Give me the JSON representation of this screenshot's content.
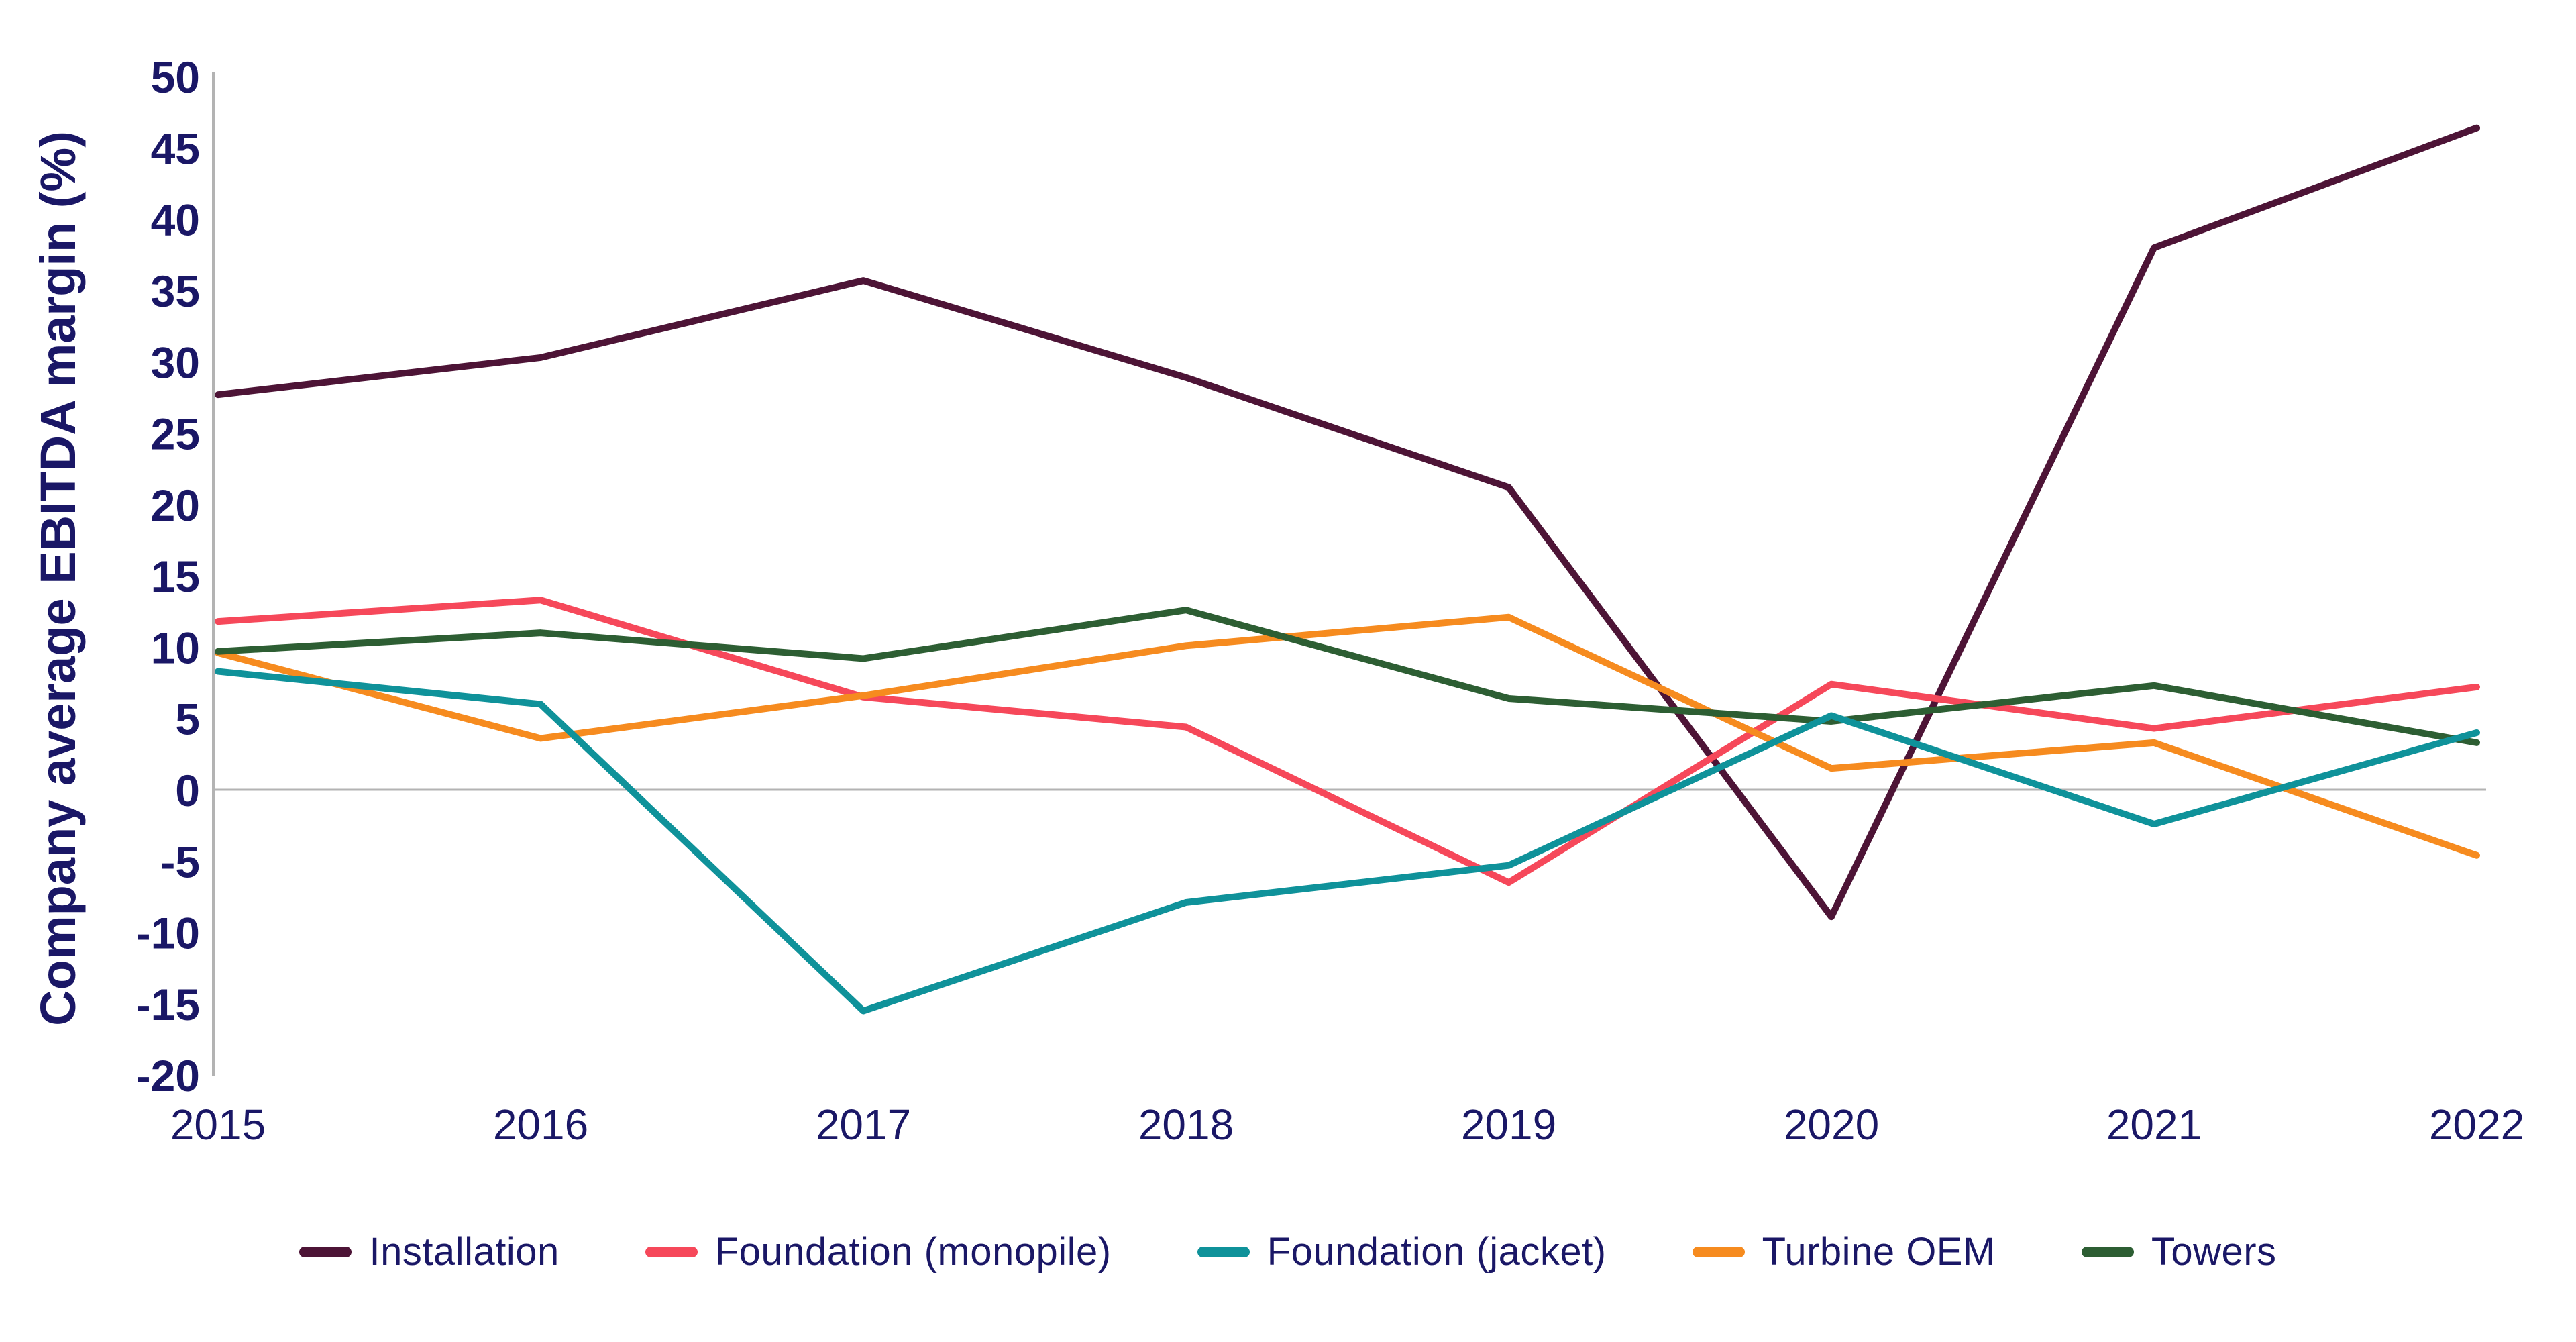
{
  "chart_data": {
    "type": "line",
    "y_axis_title": "Company average EBITDA margin (%)",
    "x_label": "",
    "x": [
      2015,
      2016,
      2017,
      2018,
      2019,
      2020,
      2021,
      2022
    ],
    "series": [
      {
        "name": "Installation",
        "color": "#4D1436",
        "values": [
          27.7,
          30.3,
          35.7,
          28.9,
          21.2,
          -8.9,
          38.0,
          46.4
        ]
      },
      {
        "name": "Foundation (monopile)",
        "color": "#F6485A",
        "values": [
          11.8,
          13.3,
          6.5,
          4.4,
          -6.5,
          7.4,
          4.3,
          7.2
        ]
      },
      {
        "name": "Foundation (jacket)",
        "color": "#0F929A",
        "values": [
          8.3,
          6.0,
          -15.5,
          -7.9,
          -5.3,
          5.2,
          -2.4,
          4.0
        ]
      },
      {
        "name": "Turbine OEM",
        "color": "#F68B1F",
        "values": [
          9.6,
          3.6,
          6.6,
          10.1,
          12.1,
          1.5,
          3.3,
          -4.6
        ]
      },
      {
        "name": "Towers",
        "color": "#2D5E33",
        "values": [
          9.7,
          11.0,
          9.2,
          12.6,
          6.4,
          4.8,
          7.3,
          3.3
        ]
      }
    ],
    "draw_order": [
      "Installation",
      "Foundation (monopile)",
      "Turbine OEM",
      "Towers",
      "Foundation (jacket)"
    ],
    "y_ticks": [
      50,
      45,
      40,
      35,
      30,
      25,
      20,
      15,
      10,
      5,
      0,
      -5,
      -10,
      -15,
      -20
    ],
    "ylim": [
      -20,
      50
    ],
    "grid": "zero-line-only",
    "legend_position": "bottom",
    "text_color": "#1A1766",
    "axis_color": "#B3B3B3"
  }
}
